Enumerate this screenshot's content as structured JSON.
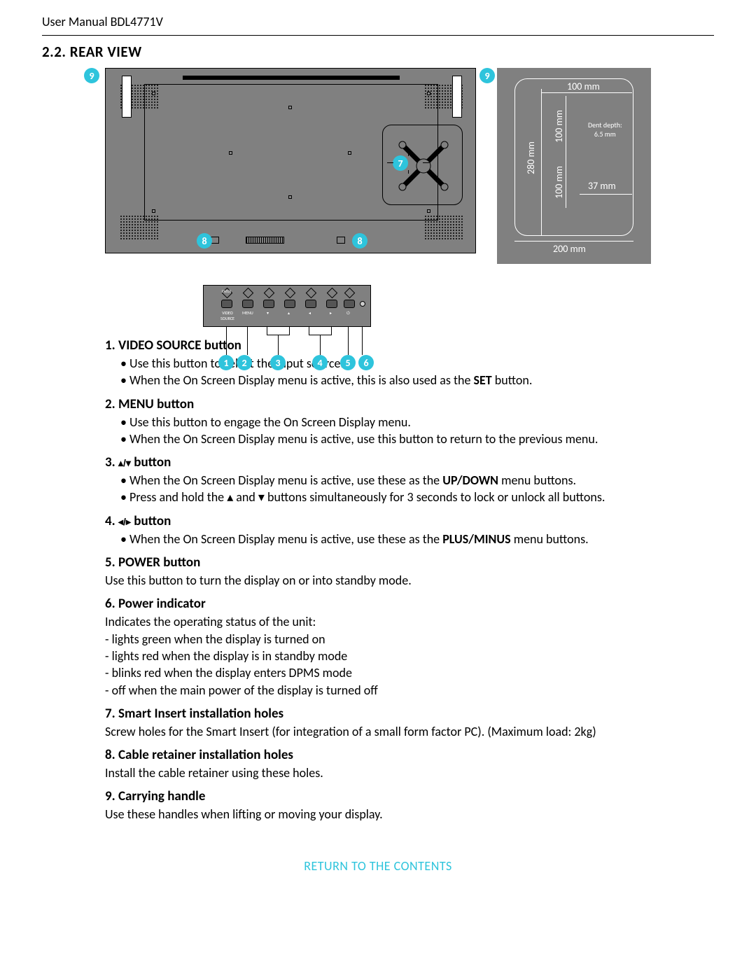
{
  "header": {
    "title": "User Manual BDL4771V"
  },
  "section": {
    "number": "2.2.",
    "title": "REAR VIEW"
  },
  "colors": {
    "accent": "#2ec4dc",
    "panel_bg": "#808080",
    "text": "#000000",
    "dim_text": "#ffffff"
  },
  "callout_badges": [
    "1",
    "2",
    "3",
    "4",
    "5",
    "6",
    "7",
    "8",
    "9"
  ],
  "dimensions_panel": {
    "width_label": "100 mm",
    "inner_100a": "100 mm",
    "inner_100b": "100 mm",
    "height_280": "280 mm",
    "right_37": "37 mm",
    "bottom_200": "200 mm",
    "dent_depth_label": "Dent depth:",
    "dent_depth_value": "6.5 mm"
  },
  "control_panel": {
    "buttons": [
      {
        "label_top": "ENTER",
        "label_bot": "VIDEO\nSOURCE"
      },
      {
        "label_bot": "MENU"
      },
      {
        "symbol": "▾"
      },
      {
        "symbol": "▴"
      },
      {
        "symbol": "◂"
      },
      {
        "symbol": "▸"
      },
      {
        "symbol": "⏻"
      }
    ]
  },
  "items": [
    {
      "num": "1.",
      "title": "VIDEO SOURCE button",
      "bullets": [
        "Use this button to select the input source.",
        [
          "When the On Screen Display menu is active, this is also used as the ",
          "SET",
          " button."
        ]
      ]
    },
    {
      "num": "2.",
      "title": "MENU button",
      "bullets": [
        "Use this button to engage the On Screen Display menu.",
        "When the On Screen Display menu is active, use this button to return to the previous menu."
      ]
    },
    {
      "num": "3.",
      "title_sym": "▴/▾",
      "title": " button",
      "bullets": [
        [
          "When the On Screen Display menu is active, use these as the ",
          "UP/DOWN",
          " menu buttons."
        ],
        [
          "Press and hold the ▴ and ▾ buttons simultaneously for 3 seconds to lock or unlock all buttons."
        ]
      ]
    },
    {
      "num": "4.",
      "title_sym": "◂/▸",
      "title": " button",
      "bullets": [
        [
          "When the On Screen Display menu is active, use these as the ",
          "PLUS/MINUS",
          " menu buttons."
        ]
      ]
    },
    {
      "num": "5.",
      "title": "POWER button",
      "body": "Use this button to turn the display on or into standby mode."
    },
    {
      "num": "6.",
      "title": "Power indicator",
      "body": "Indicates the operating status of the unit:",
      "dashes": [
        "lights green when the display is turned on",
        "lights red when the display is in standby mode",
        "blinks red when the display enters DPMS mode",
        "off when the main power of the display is turned off"
      ]
    },
    {
      "num": "7.",
      "title": "Smart Insert installation holes",
      "body": "Screw holes for the Smart Insert (for integration of a small form factor PC).  (Maximum load: 2kg)"
    },
    {
      "num": "8.",
      "title": "Cable retainer installation holes",
      "body": "Install the cable retainer using these holes."
    },
    {
      "num": "9.",
      "title": "Carrying handle",
      "body": "Use these handles when lifting or moving your display."
    }
  ],
  "footer": {
    "return_link": "RETURN TO THE CONTENTS"
  }
}
